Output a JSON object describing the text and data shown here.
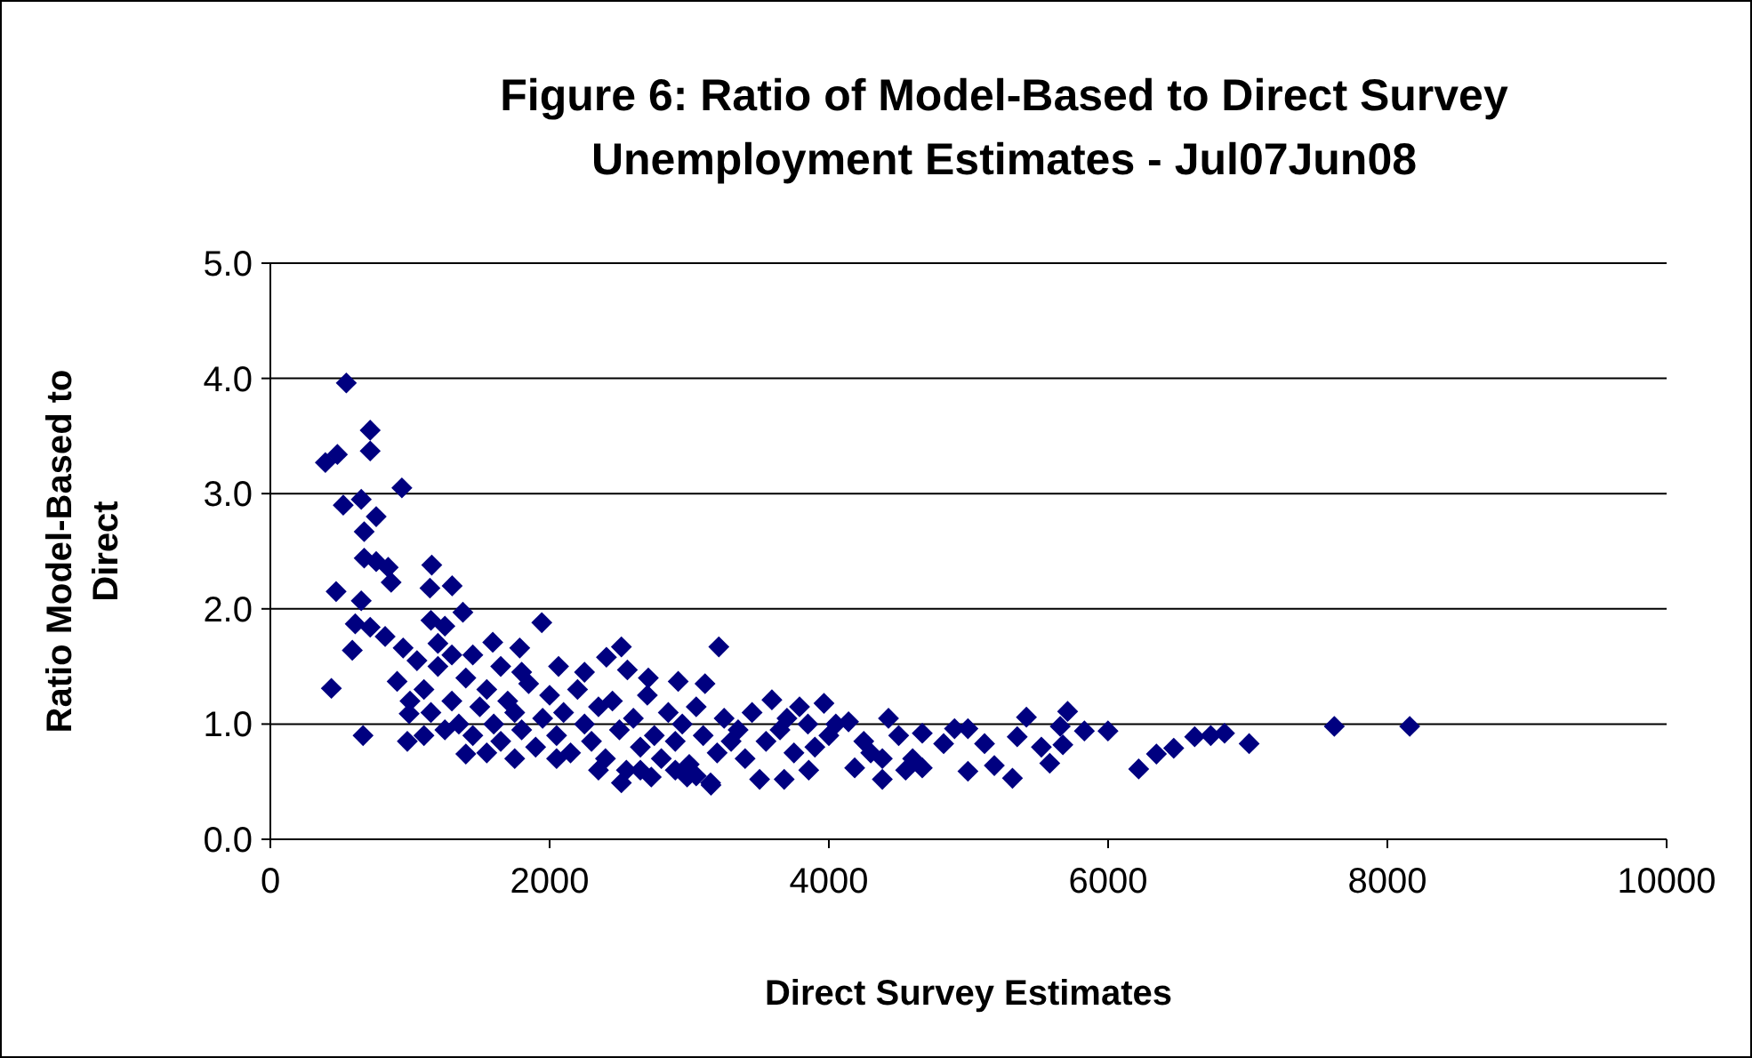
{
  "chart_data": {
    "type": "scatter",
    "title": "Figure 6: Ratio of Model-Based to Direct Survey Unemployment Estimates - Jul07Jun08",
    "xlabel": "Direct Survey Estimates",
    "ylabel": "Ratio Model-Based to Direct",
    "xlim": [
      0,
      10000
    ],
    "xticks": [
      0,
      2000,
      4000,
      6000,
      8000,
      10000
    ],
    "ylim": [
      0,
      5
    ],
    "yticks": [
      {
        "value": 0,
        "label": "0.0"
      },
      {
        "value": 1,
        "label": "1.0"
      },
      {
        "value": 2,
        "label": "2.0"
      },
      {
        "value": 3,
        "label": "3.0"
      },
      {
        "value": 4,
        "label": "4.0"
      },
      {
        "value": 5,
        "label": "5.0"
      }
    ],
    "grid": "y",
    "marker": "diamond",
    "series": [
      {
        "color": "#000080",
        "x": [
          544,
          715,
          715,
          394,
          480,
          942,
          522,
          651,
          758,
          672,
          672,
          758,
          844,
          865,
          1156,
          1143,
          1302,
          471,
          1379,
          1944,
          651,
          608,
          715,
          587,
          437,
          664,
          981,
          1400,
          1786,
          1593,
          2514,
          2407,
          2557,
          3212,
          822,
          951,
          908,
          994,
          2514,
          2728,
          3156,
          2985,
          2064,
          2707,
          2921,
          3113,
          7620,
          8160,
          7010,
          6834,
          6735,
          6620,
          6470,
          6346,
          6219,
          5999,
          5830,
          5710,
          5657,
          5676,
          5582,
          5522,
          5415,
          5349,
          5315,
          5185,
          5115,
          4996,
          4996,
          4900,
          4822,
          4669,
          4669,
          4550,
          4383,
          4383,
          4427,
          4141,
          4185,
          3965,
          3856,
          3790,
          3680,
          3504,
          3592,
          3153,
          1100,
          1150,
          1200,
          1250,
          1300,
          1350,
          1400,
          1450,
          1500,
          1550,
          1600,
          1650,
          1700,
          1750,
          1800,
          1850,
          1900,
          1950,
          2000,
          2050,
          2100,
          2150,
          2200,
          2250,
          2300,
          2350,
          2400,
          2450,
          2500,
          2550,
          2600,
          2650,
          2700,
          2750,
          2800,
          2850,
          2900,
          2950,
          3000,
          3050,
          3100,
          3200,
          3250,
          3300,
          3350,
          3400,
          3450,
          3550,
          3650,
          3700,
          3750,
          3850,
          3900,
          4000,
          4050,
          4250,
          4300,
          4500,
          4600,
          1200,
          1300,
          1450,
          1650,
          1800,
          2250,
          1550,
          1750,
          2050,
          2350,
          2650,
          2900,
          3050,
          1100,
          1000,
          1050,
          1150,
          1250
        ],
        "values": [
          3.96,
          3.55,
          3.37,
          3.27,
          3.34,
          3.05,
          2.9,
          2.95,
          2.8,
          2.67,
          2.44,
          2.41,
          2.36,
          2.23,
          2.38,
          2.18,
          2.2,
          2.15,
          1.97,
          1.88,
          2.07,
          1.87,
          1.84,
          1.64,
          1.31,
          0.9,
          0.85,
          0.74,
          1.66,
          1.71,
          1.67,
          1.58,
          1.47,
          1.67,
          1.76,
          1.66,
          1.37,
          1.09,
          0.49,
          0.54,
          0.47,
          0.54,
          1.5,
          1.4,
          1.37,
          1.35,
          0.98,
          0.98,
          0.83,
          0.92,
          0.9,
          0.89,
          0.79,
          0.74,
          0.61,
          0.94,
          0.94,
          1.11,
          0.98,
          0.82,
          0.66,
          0.8,
          1.06,
          0.89,
          0.53,
          0.64,
          0.83,
          0.59,
          0.96,
          0.96,
          0.83,
          0.92,
          0.62,
          0.6,
          0.52,
          0.7,
          1.05,
          1.02,
          0.62,
          1.18,
          0.6,
          1.15,
          0.52,
          0.52,
          1.21,
          0.49,
          1.3,
          1.1,
          1.5,
          0.95,
          1.2,
          1.0,
          1.4,
          0.9,
          1.15,
          1.3,
          1.0,
          0.85,
          1.2,
          1.1,
          0.95,
          1.35,
          0.8,
          1.05,
          1.25,
          0.9,
          1.1,
          0.75,
          1.3,
          1.0,
          0.85,
          1.15,
          0.7,
          1.2,
          0.95,
          0.6,
          1.05,
          0.8,
          1.25,
          0.9,
          0.7,
          1.1,
          0.85,
          1.0,
          0.65,
          1.15,
          0.9,
          0.75,
          1.05,
          0.85,
          0.95,
          0.7,
          1.1,
          0.85,
          0.95,
          1.05,
          0.75,
          1.0,
          0.8,
          0.9,
          1.0,
          0.85,
          0.75,
          0.9,
          0.7,
          1.7,
          1.6,
          1.6,
          1.5,
          1.45,
          1.45,
          0.75,
          0.7,
          0.7,
          0.6,
          0.6,
          0.6,
          0.55,
          0.9,
          1.2,
          1.55,
          1.9,
          1.85
        ]
      }
    ]
  }
}
